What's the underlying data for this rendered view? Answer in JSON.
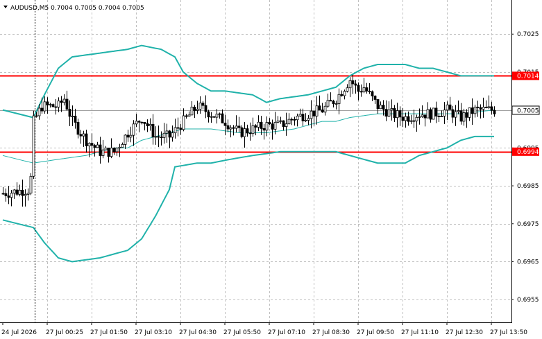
{
  "header": {
    "symbol_label": "AUDUSD,M5  0.7004 0.7005 0.7004 0.7005"
  },
  "chart_data": {
    "type": "candlestick",
    "symbol": "AUDUSD",
    "timeframe": "M5",
    "ohlc_header": {
      "open": 0.7004,
      "high": 0.7005,
      "low": 0.7004,
      "close": 0.7005
    },
    "ylim": [
      0.6949,
      0.7034
    ],
    "y_ticks": [
      "0.7025",
      "0.7015",
      "0.7005",
      "0.6995",
      "0.6985",
      "0.6975",
      "0.6965",
      "0.6955"
    ],
    "x_ticks": [
      "24 Jul 2026",
      "27 Jul 00:25",
      "27 Jul 01:50",
      "27 Jul 03:10",
      "27 Jul 04:30",
      "27 Jul 05:50",
      "27 Jul 07:10",
      "27 Jul 08:30",
      "27 Jul 09:50",
      "27 Jul 11:10",
      "27 Jul 12:30",
      "27 Jul 13:50"
    ],
    "x_tick_index": [
      0,
      16,
      32,
      48,
      64,
      80,
      96,
      112,
      128,
      144,
      160,
      176
    ],
    "current_price": {
      "value": 0.7005,
      "label": "0.7005"
    },
    "levels": [
      {
        "value": 0.7014,
        "label": "0.7014",
        "color": "#ff0000"
      },
      {
        "value": 0.6994,
        "label": "0.6994",
        "color": "#ff0000"
      }
    ],
    "session_break_index": 11,
    "grid": true,
    "colors": {
      "background": "#ffffff",
      "candles": "#000000",
      "bands": "#20b2aa",
      "grid": "#c0c0c0",
      "level": "#ff0000"
    },
    "candle_count": 178,
    "close_anchors": [
      [
        0,
        0.6983
      ],
      [
        9,
        0.6984
      ],
      [
        10,
        0.6987
      ],
      [
        11,
        0.7002
      ],
      [
        14,
        0.7006
      ],
      [
        20,
        0.7006
      ],
      [
        22,
        0.7008
      ],
      [
        25,
        0.7002
      ],
      [
        30,
        0.6997
      ],
      [
        35,
        0.6994
      ],
      [
        40,
        0.6994
      ],
      [
        45,
        0.6999
      ],
      [
        50,
        0.7003
      ],
      [
        55,
        0.6998
      ],
      [
        60,
        0.6998
      ],
      [
        65,
        0.7002
      ],
      [
        70,
        0.7006
      ],
      [
        75,
        0.7004
      ],
      [
        80,
        0.7002
      ],
      [
        85,
        0.6999
      ],
      [
        90,
        0.7
      ],
      [
        95,
        0.7001
      ],
      [
        100,
        0.7001
      ],
      [
        105,
        0.7003
      ],
      [
        110,
        0.7004
      ],
      [
        115,
        0.7005
      ],
      [
        120,
        0.7008
      ],
      [
        125,
        0.7013
      ],
      [
        128,
        0.701
      ],
      [
        130,
        0.7011
      ],
      [
        135,
        0.7006
      ],
      [
        140,
        0.7004
      ],
      [
        145,
        0.7003
      ],
      [
        150,
        0.7004
      ],
      [
        155,
        0.7004
      ],
      [
        160,
        0.7005
      ],
      [
        165,
        0.7003
      ],
      [
        170,
        0.7005
      ],
      [
        175,
        0.7005
      ],
      [
        177,
        0.7005
      ]
    ],
    "upper_band_anchors": [
      [
        0,
        0.7005
      ],
      [
        11,
        0.7003
      ],
      [
        15,
        0.7009
      ],
      [
        20,
        0.7016
      ],
      [
        25,
        0.7019
      ],
      [
        35,
        0.702
      ],
      [
        45,
        0.7021
      ],
      [
        50,
        0.7022
      ],
      [
        57,
        0.7021
      ],
      [
        62,
        0.7019
      ],
      [
        65,
        0.7015
      ],
      [
        70,
        0.7012
      ],
      [
        75,
        0.701
      ],
      [
        80,
        0.701
      ],
      [
        90,
        0.7009
      ],
      [
        95,
        0.7007
      ],
      [
        100,
        0.7008
      ],
      [
        110,
        0.7009
      ],
      [
        115,
        0.701
      ],
      [
        120,
        0.7011
      ],
      [
        125,
        0.7014
      ],
      [
        130,
        0.7016
      ],
      [
        135,
        0.7017
      ],
      [
        145,
        0.7017
      ],
      [
        150,
        0.7016
      ],
      [
        155,
        0.7016
      ],
      [
        160,
        0.7015
      ],
      [
        165,
        0.7014
      ],
      [
        170,
        0.7014
      ],
      [
        177,
        0.7014
      ]
    ],
    "middle_band_anchors": [
      [
        0,
        0.6993
      ],
      [
        11,
        0.6991
      ],
      [
        20,
        0.6992
      ],
      [
        30,
        0.6993
      ],
      [
        40,
        0.6995
      ],
      [
        45,
        0.6995
      ],
      [
        50,
        0.6997
      ],
      [
        60,
        0.6999
      ],
      [
        65,
        0.7
      ],
      [
        75,
        0.7
      ],
      [
        85,
        0.6999
      ],
      [
        95,
        0.6999
      ],
      [
        105,
        0.7
      ],
      [
        110,
        0.7001
      ],
      [
        115,
        0.7002
      ],
      [
        120,
        0.7002
      ],
      [
        125,
        0.7003
      ],
      [
        135,
        0.7004
      ],
      [
        145,
        0.7004
      ],
      [
        155,
        0.7004
      ],
      [
        165,
        0.7004
      ],
      [
        177,
        0.7005
      ]
    ],
    "lower_band_anchors": [
      [
        0,
        0.6976
      ],
      [
        11,
        0.6974
      ],
      [
        15,
        0.697
      ],
      [
        20,
        0.6966
      ],
      [
        25,
        0.6965
      ],
      [
        35,
        0.6966
      ],
      [
        45,
        0.6968
      ],
      [
        50,
        0.6971
      ],
      [
        55,
        0.6977
      ],
      [
        60,
        0.6984
      ],
      [
        62,
        0.699
      ],
      [
        70,
        0.6991
      ],
      [
        75,
        0.6991
      ],
      [
        82,
        0.6992
      ],
      [
        90,
        0.6993
      ],
      [
        100,
        0.6994
      ],
      [
        110,
        0.6994
      ],
      [
        115,
        0.6994
      ],
      [
        120,
        0.6994
      ],
      [
        125,
        0.6993
      ],
      [
        130,
        0.6992
      ],
      [
        135,
        0.6991
      ],
      [
        140,
        0.6991
      ],
      [
        145,
        0.6991
      ],
      [
        150,
        0.6993
      ],
      [
        155,
        0.6994
      ],
      [
        160,
        0.6995
      ],
      [
        165,
        0.6997
      ],
      [
        170,
        0.6998
      ],
      [
        177,
        0.6998
      ]
    ]
  }
}
